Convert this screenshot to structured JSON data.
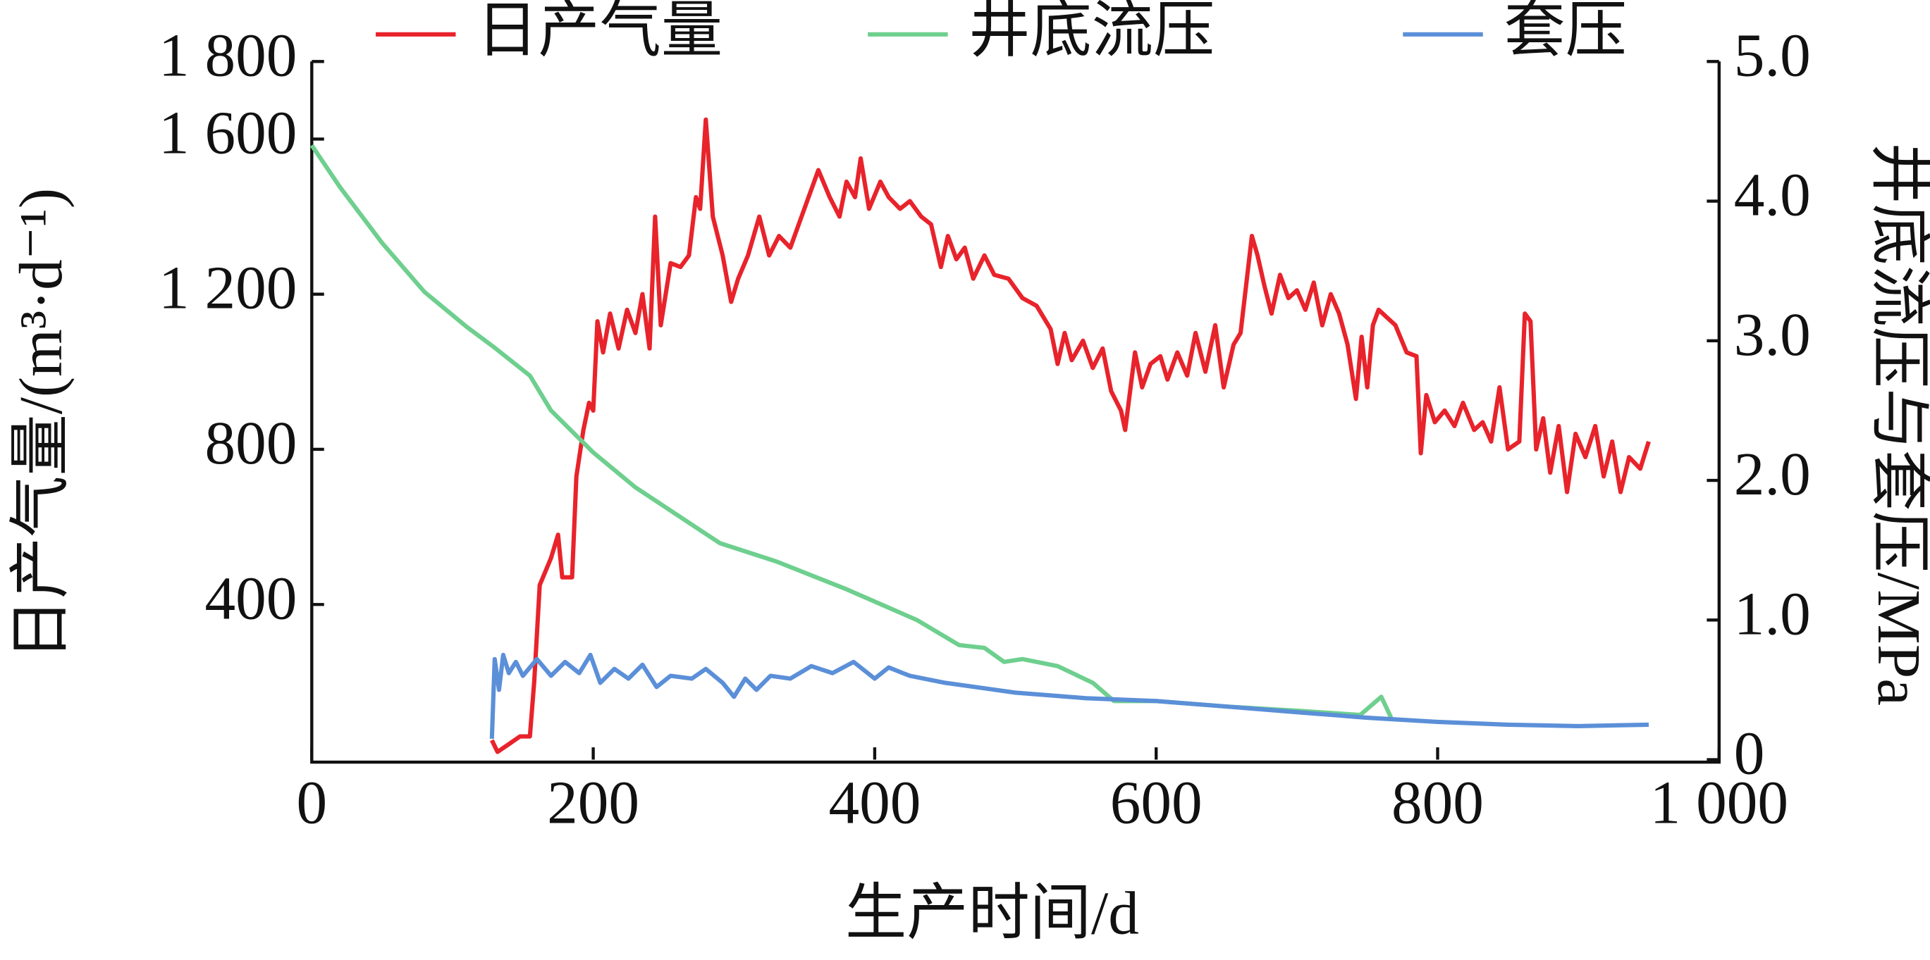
{
  "chart_data": {
    "type": "line",
    "x_label": "生产时间/d",
    "y_label": "日产气量/(m³·d⁻¹)",
    "y2_label": "井底流压与套压/MPa",
    "legend": "top",
    "xlim": [
      0,
      1000
    ],
    "xticks": [
      0,
      200,
      400,
      600,
      800,
      {
        "value": 1000,
        "label": "1 000"
      }
    ],
    "ylim": [
      0,
      1800
    ],
    "yticks": [
      400,
      800,
      {
        "value": 1200,
        "label": "1 200"
      },
      {
        "value": 1600,
        "label": "1 600"
      },
      {
        "value": 1800,
        "label": "1 800"
      }
    ],
    "y2lim": [
      0,
      5
    ],
    "y2ticks": [
      0,
      {
        "value": 1,
        "label": "1.0"
      },
      {
        "value": 2,
        "label": "2.0"
      },
      {
        "value": 3,
        "label": "3.0"
      },
      {
        "value": 4,
        "label": "4.0"
      },
      {
        "value": 5,
        "label": "5.0"
      }
    ],
    "series": [
      {
        "name": "日产气量",
        "color": "#e8232b",
        "x": [
          128,
          132,
          140,
          148,
          155,
          158,
          162,
          170,
          175,
          178,
          185,
          188,
          193,
          197,
          200,
          203,
          207,
          212,
          218,
          224,
          230,
          235,
          240,
          244,
          248,
          255,
          262,
          268,
          273,
          276,
          280,
          285,
          292,
          298,
          303,
          310,
          318,
          325,
          332,
          340,
          350,
          360,
          368,
          375,
          380,
          386,
          390,
          396,
          404,
          410,
          418,
          425,
          433,
          440,
          447,
          452,
          458,
          464,
          470,
          478,
          485,
          495,
          505,
          515,
          525,
          530,
          535,
          540,
          548,
          555,
          562,
          568,
          575,
          578,
          585,
          590,
          596,
          603,
          608,
          615,
          622,
          628,
          635,
          642,
          648,
          655,
          660,
          668,
          672,
          677,
          682,
          688,
          694,
          700,
          706,
          712,
          718,
          724,
          730,
          736,
          742,
          746,
          750,
          754,
          758,
          764,
          770,
          778,
          785,
          788,
          792,
          798,
          805,
          812,
          818,
          826,
          832,
          838,
          844,
          850,
          858,
          862,
          866,
          870,
          875,
          880,
          886,
          892,
          898,
          905,
          912,
          918,
          924,
          930,
          936,
          944,
          950
        ],
        "values": [
          50,
          20,
          40,
          60,
          60,
          200,
          450,
          520,
          580,
          470,
          470,
          730,
          850,
          920,
          900,
          1130,
          1050,
          1150,
          1060,
          1160,
          1100,
          1200,
          1060,
          1400,
          1120,
          1280,
          1270,
          1300,
          1450,
          1420,
          1650,
          1400,
          1300,
          1180,
          1240,
          1300,
          1400,
          1300,
          1350,
          1320,
          1420,
          1520,
          1450,
          1400,
          1490,
          1450,
          1550,
          1420,
          1490,
          1450,
          1420,
          1440,
          1400,
          1380,
          1270,
          1350,
          1290,
          1320,
          1240,
          1300,
          1250,
          1240,
          1190,
          1170,
          1110,
          1020,
          1100,
          1030,
          1080,
          1010,
          1060,
          950,
          900,
          850,
          1050,
          960,
          1020,
          1040,
          980,
          1050,
          990,
          1100,
          1000,
          1120,
          960,
          1070,
          1100,
          1350,
          1300,
          1220,
          1150,
          1250,
          1190,
          1210,
          1160,
          1230,
          1120,
          1200,
          1150,
          1070,
          930,
          1090,
          960,
          1120,
          1160,
          1140,
          1120,
          1050,
          1040,
          790,
          940,
          870,
          900,
          860,
          920,
          850,
          870,
          820,
          960,
          800,
          820,
          1150,
          1130,
          800,
          880,
          740,
          860,
          690,
          840,
          780,
          860,
          730,
          820,
          690,
          780,
          750,
          820
        ]
      },
      {
        "name": "井底流压",
        "color": "#6ecf8e",
        "axis": "y2",
        "x": [
          0,
          20,
          50,
          80,
          110,
          130,
          155,
          170,
          185,
          200,
          230,
          260,
          290,
          330,
          380,
          430,
          460,
          478,
          492,
          505,
          530,
          555,
          570,
          600,
          650,
          700,
          745,
          760,
          767
        ],
        "values": [
          4.4,
          4.1,
          3.7,
          3.35,
          3.1,
          2.95,
          2.75,
          2.5,
          2.35,
          2.2,
          1.95,
          1.75,
          1.55,
          1.42,
          1.22,
          1.0,
          0.82,
          0.8,
          0.7,
          0.72,
          0.67,
          0.55,
          0.42,
          0.42,
          0.38,
          0.35,
          0.32,
          0.45,
          0.3
        ]
      },
      {
        "name": "套压",
        "color": "#5b8fd8",
        "axis": "y2",
        "x": [
          128,
          130,
          133,
          136,
          140,
          145,
          150,
          160,
          170,
          180,
          190,
          198,
          205,
          215,
          225,
          235,
          245,
          255,
          270,
          280,
          292,
          300,
          308,
          316,
          326,
          340,
          355,
          370,
          385,
          400,
          410,
          420,
          425,
          450,
          500,
          550,
          600,
          650,
          700,
          750,
          800,
          850,
          900,
          950
        ],
        "values": [
          0.15,
          0.72,
          0.5,
          0.75,
          0.62,
          0.7,
          0.6,
          0.72,
          0.6,
          0.7,
          0.62,
          0.75,
          0.55,
          0.65,
          0.58,
          0.68,
          0.52,
          0.6,
          0.58,
          0.65,
          0.55,
          0.45,
          0.58,
          0.5,
          0.6,
          0.58,
          0.67,
          0.62,
          0.7,
          0.58,
          0.66,
          0.62,
          0.6,
          0.55,
          0.48,
          0.44,
          0.42,
          0.38,
          0.34,
          0.3,
          0.27,
          0.25,
          0.24,
          0.25
        ]
      }
    ]
  }
}
